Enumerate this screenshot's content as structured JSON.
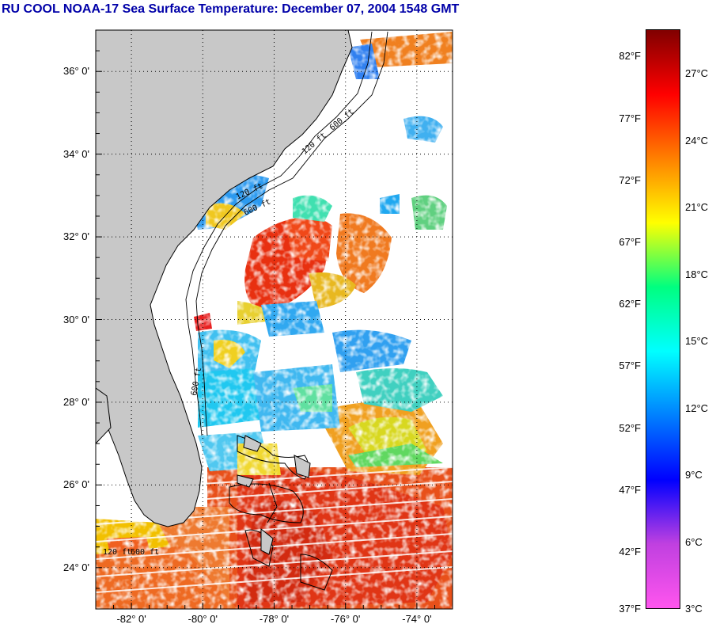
{
  "title": "RU COOL  NOAA-17  Sea Surface Temperature:  December 07, 2004 1548 GMT",
  "map": {
    "lon_range": [
      -83.0,
      -73.0
    ],
    "lat_range": [
      23.0,
      37.0
    ],
    "land_color": "#c8c8c8",
    "water_no_data_color": "#ffffff",
    "gridlines": "dotted",
    "lat_labels": [
      {
        "lat": 36,
        "text": "36° 0'"
      },
      {
        "lat": 34,
        "text": "34° 0'"
      },
      {
        "lat": 32,
        "text": "32° 0'"
      },
      {
        "lat": 30,
        "text": "30° 0'"
      },
      {
        "lat": 28,
        "text": "28° 0'"
      },
      {
        "lat": 26,
        "text": "26° 0'"
      },
      {
        "lat": 24,
        "text": "24° 0'"
      }
    ],
    "lon_labels": [
      {
        "lon": -82,
        "text": "-82° 0'"
      },
      {
        "lon": -80,
        "text": "-80° 0'"
      },
      {
        "lon": -78,
        "text": "-78° 0'"
      },
      {
        "lon": -76,
        "text": "-76° 0'"
      },
      {
        "lon": -74,
        "text": "-74° 0'"
      }
    ],
    "isobath_labels": [
      "120 ft",
      "600 ft"
    ]
  },
  "colorbar": {
    "range_c": [
      3,
      29
    ],
    "stops": [
      "#ff55ee",
      "#c040e0",
      "#0000ff",
      "#0080ff",
      "#00ffff",
      "#00ff80",
      "#ffff00",
      "#ff8000",
      "#ff0000",
      "#800000"
    ],
    "fahrenheit_labels": [
      {
        "value": 82,
        "text": "82°F"
      },
      {
        "value": 77,
        "text": "77°F"
      },
      {
        "value": 72,
        "text": "72°F"
      },
      {
        "value": 67,
        "text": "67°F"
      },
      {
        "value": 62,
        "text": "62°F"
      },
      {
        "value": 57,
        "text": "57°F"
      },
      {
        "value": 52,
        "text": "52°F"
      },
      {
        "value": 47,
        "text": "47°F"
      },
      {
        "value": 42,
        "text": "42°F"
      },
      {
        "value": 37,
        "text": "37°F"
      }
    ],
    "celsius_labels": [
      {
        "value": 27,
        "text": "27°C"
      },
      {
        "value": 24,
        "text": "24°C"
      },
      {
        "value": 21,
        "text": "21°C"
      },
      {
        "value": 18,
        "text": "18°C"
      },
      {
        "value": 15,
        "text": "15°C"
      },
      {
        "value": 12,
        "text": "12°C"
      },
      {
        "value": 9,
        "text": "9°C"
      },
      {
        "value": 6,
        "text": "6°C"
      },
      {
        "value": 3,
        "text": "3°C"
      }
    ]
  }
}
